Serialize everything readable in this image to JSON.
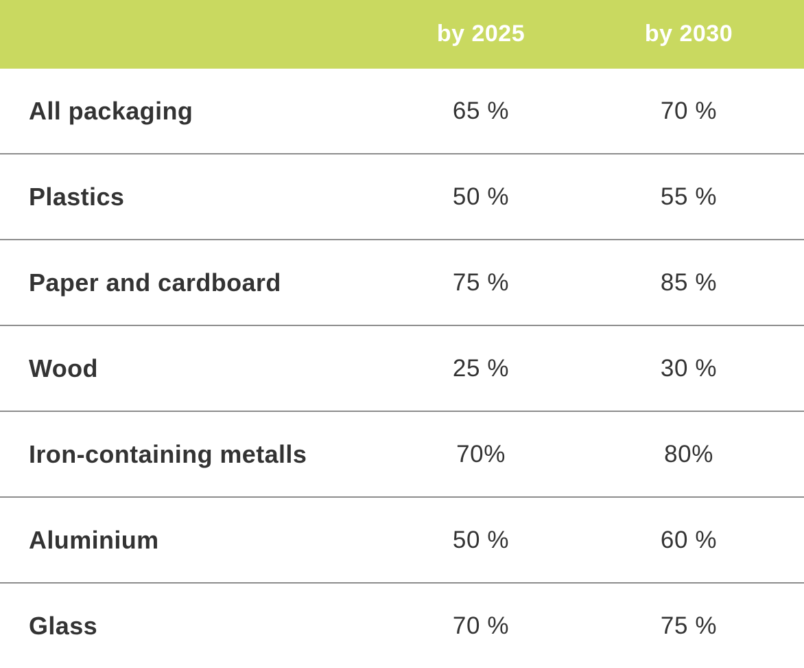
{
  "header": {
    "columns": [
      "",
      "by 2025",
      "by 2030"
    ]
  },
  "rows": [
    {
      "label": "All packaging",
      "y2025": "65 %",
      "y2030": "70 %"
    },
    {
      "label": "Plastics",
      "y2025": "50 %",
      "y2030": "55 %"
    },
    {
      "label": "Paper and cardboard",
      "y2025": "75 %",
      "y2030": "85 %"
    },
    {
      "label": "Wood",
      "y2025": "25 %",
      "y2030": "30 %"
    },
    {
      "label": "Iron-containing metalls",
      "y2025": "70%",
      "y2030": "80%"
    },
    {
      "label": "Aluminium",
      "y2025": "50 %",
      "y2030": "60 %"
    },
    {
      "label": "Glass",
      "y2025": "70 %",
      "y2030": "75 %"
    }
  ],
  "colors": {
    "header_bg": "#c9d960",
    "header_text": "#ffffff",
    "body_text": "#333333",
    "divider": "#8c8c8c"
  }
}
